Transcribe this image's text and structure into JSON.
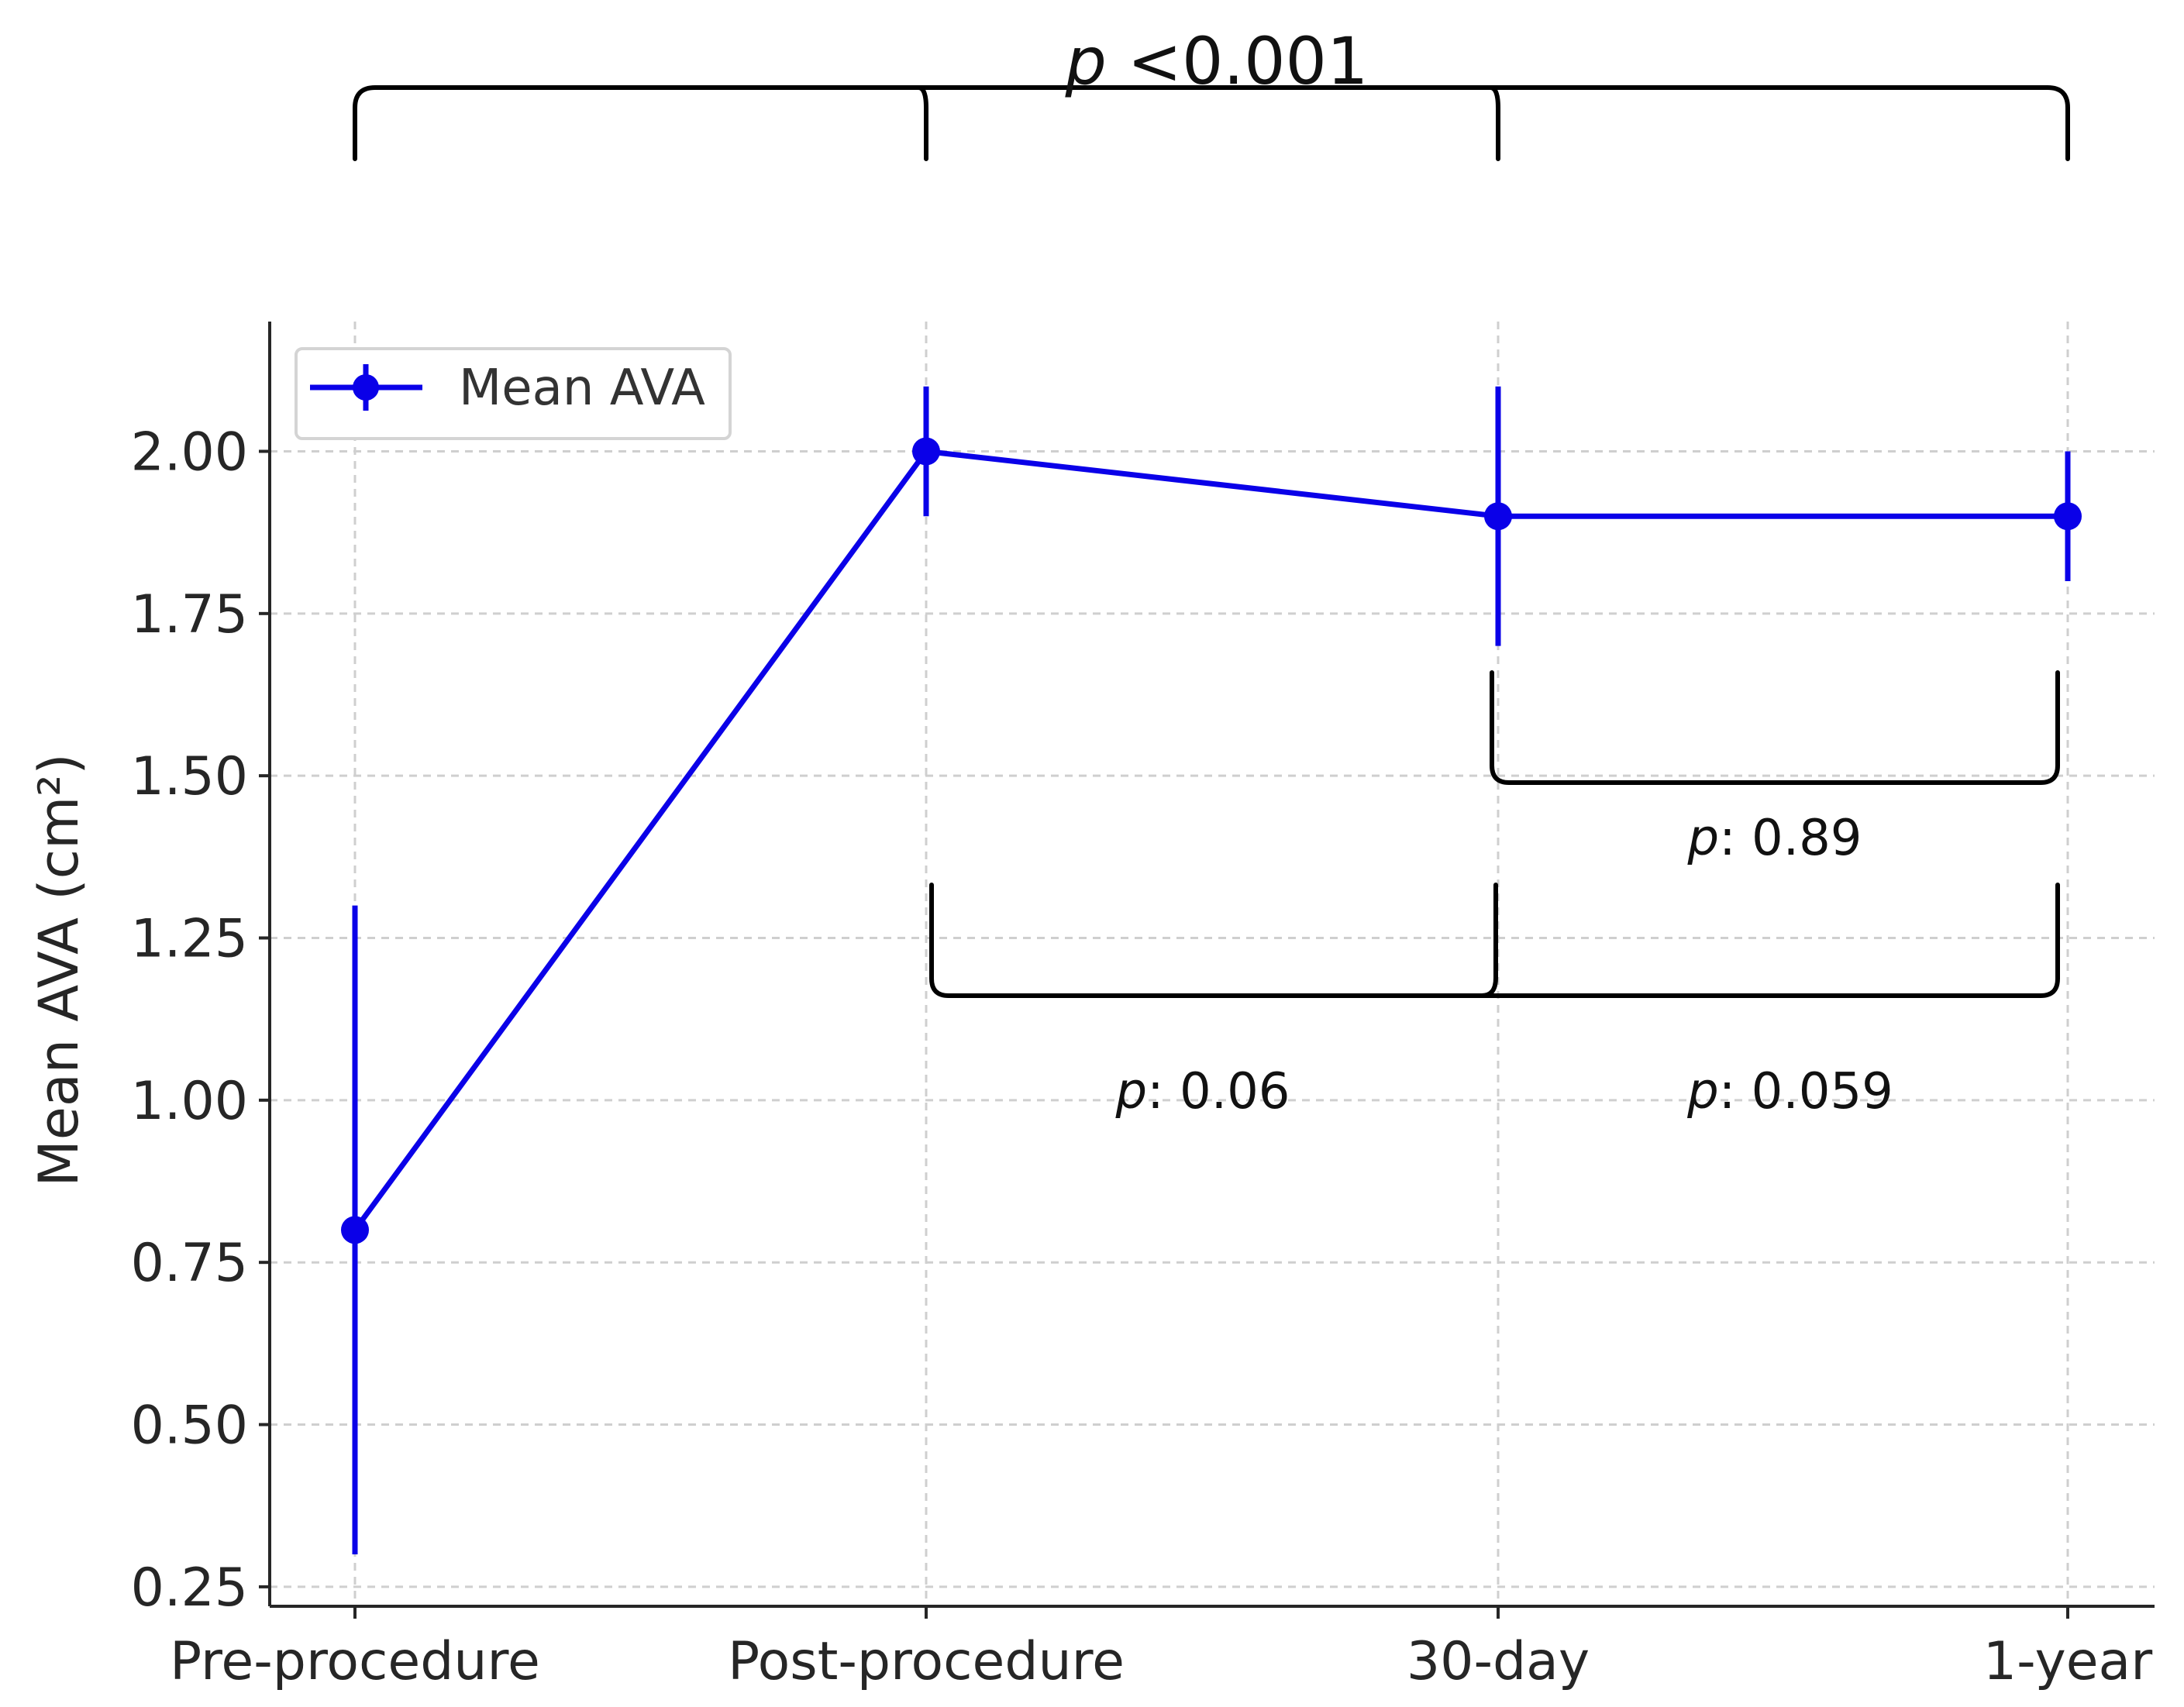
{
  "chart_data": {
    "type": "line",
    "categories": [
      "Pre-procedure",
      "Post-procedure",
      "30-day",
      "1-year"
    ],
    "series": [
      {
        "name": "Mean AVA",
        "values": [
          0.8,
          2.0,
          1.9,
          1.9
        ],
        "error": [
          0.5,
          0.1,
          0.2,
          0.1
        ],
        "color": "#0a00e8"
      }
    ],
    "ylabel": "Mean AVA (cm²)",
    "xlabel": "",
    "ylim": [
      0.22,
      2.2
    ],
    "yticks": [
      "0.25",
      "0.50",
      "0.75",
      "1.00",
      "1.25",
      "1.50",
      "1.75",
      "2.00"
    ],
    "grid": true,
    "legend": {
      "position": "top-left",
      "entries": [
        "Mean AVA"
      ]
    },
    "annotations": {
      "overall": {
        "p": "p",
        "value": " <0.001"
      },
      "pairwise": [
        {
          "from": 2,
          "to": 3,
          "p": "p",
          "value": ": 0.89"
        },
        {
          "from": 1,
          "to": 2,
          "p": "p",
          "value": ": 0.06"
        },
        {
          "from": 1,
          "to": 3,
          "p": "p",
          "value": ": 0.059"
        }
      ]
    }
  }
}
